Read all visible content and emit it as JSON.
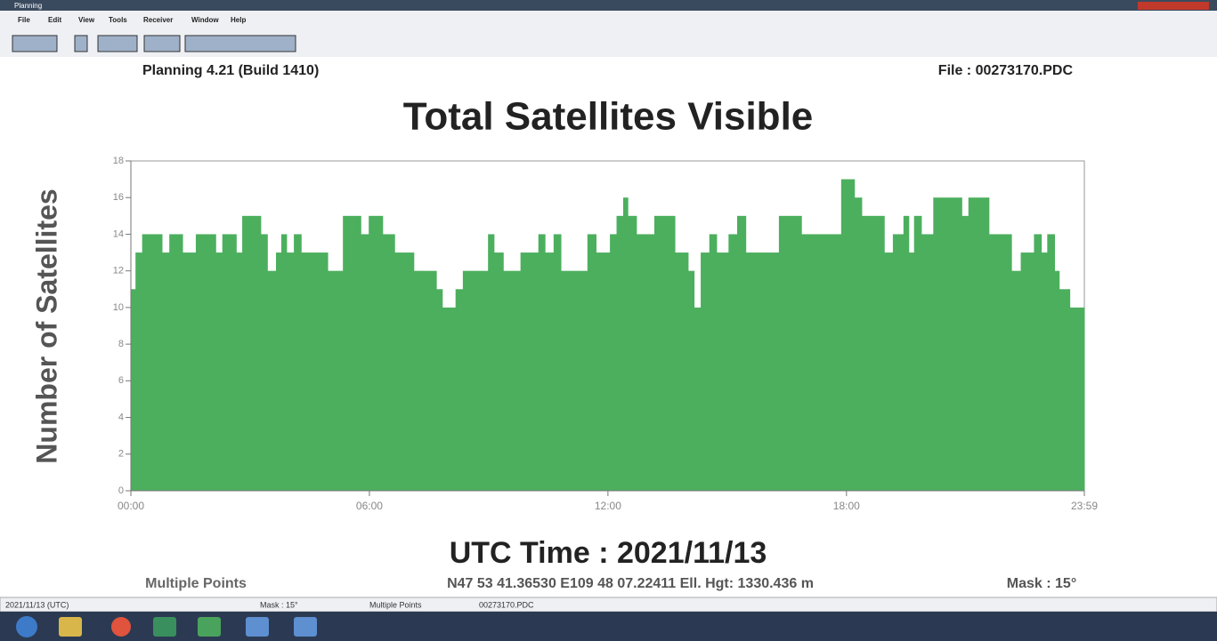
{
  "window": {
    "title": "Planning",
    "menu": [
      "File",
      "Edit",
      "View",
      "Tools",
      "Receiver",
      "Window",
      "Help"
    ]
  },
  "header": {
    "version": "Planning 4.21 (Build 1410)",
    "file": "File : 00273170.PDC"
  },
  "chart_data": {
    "type": "area",
    "title": "Total Satellites Visible",
    "y_label": "Number of Satellites",
    "x_label": "UTC Time : 2021/11/13",
    "color": "#4caf5e",
    "x": [
      0,
      7,
      17,
      47,
      58,
      78,
      98,
      128,
      138,
      159,
      168,
      196,
      206,
      219,
      227,
      235,
      246,
      257,
      297,
      320,
      347,
      359,
      380,
      398,
      427,
      441,
      461,
      470,
      490,
      501,
      539,
      548,
      562,
      588,
      615,
      625,
      638,
      649,
      689,
      702,
      723,
      733,
      743,
      750,
      763,
      790,
      821,
      841,
      850,
      860,
      873,
      884,
      902,
      915,
      928,
      978,
      1012,
      1072,
      1092,
      1103,
      1137,
      1150,
      1166,
      1174,
      1182,
      1193,
      1211,
      1254,
      1264,
      1295,
      1329,
      1343,
      1363,
      1374,
      1383,
      1394,
      1401,
      1417
    ],
    "values": [
      11,
      13,
      14,
      13,
      14,
      13,
      14,
      13,
      14,
      13,
      15,
      14,
      12,
      13,
      14,
      13,
      14,
      13,
      12,
      15,
      14,
      15,
      14,
      13,
      12,
      12,
      11,
      10,
      11,
      12,
      14,
      13,
      12,
      13,
      14,
      13,
      14,
      12,
      14,
      13,
      14,
      15,
      16,
      15,
      14,
      15,
      13,
      12,
      10,
      13,
      14,
      13,
      14,
      15,
      13,
      15,
      14,
      17,
      16,
      15,
      13,
      14,
      15,
      13,
      15,
      14,
      16,
      15,
      16,
      14,
      12,
      13,
      14,
      13,
      14,
      12,
      11,
      10
    ],
    "xlim": [
      0,
      1439
    ],
    "ylim": [
      0,
      18
    ],
    "xticks": [
      {
        "value": 0,
        "label": "00:00"
      },
      {
        "value": 360,
        "label": "06:00"
      },
      {
        "value": 720,
        "label": "12:00"
      },
      {
        "value": 1080,
        "label": "18:00"
      },
      {
        "value": 1439,
        "label": "23:59"
      }
    ],
    "yticks": [
      0,
      2,
      4,
      6,
      8,
      10,
      12,
      14,
      16,
      18
    ]
  },
  "footer": {
    "point": "Multiple Points",
    "position": "N47 53 41.36530 E109 48 07.22411 Ell. Hgt: 1330.436 m",
    "mask": "Mask : 15°"
  },
  "status_bar": [
    "2021/11/13 (UTC)",
    "Mask : 15°",
    "Multiple Points",
    "00273170.PDC"
  ]
}
